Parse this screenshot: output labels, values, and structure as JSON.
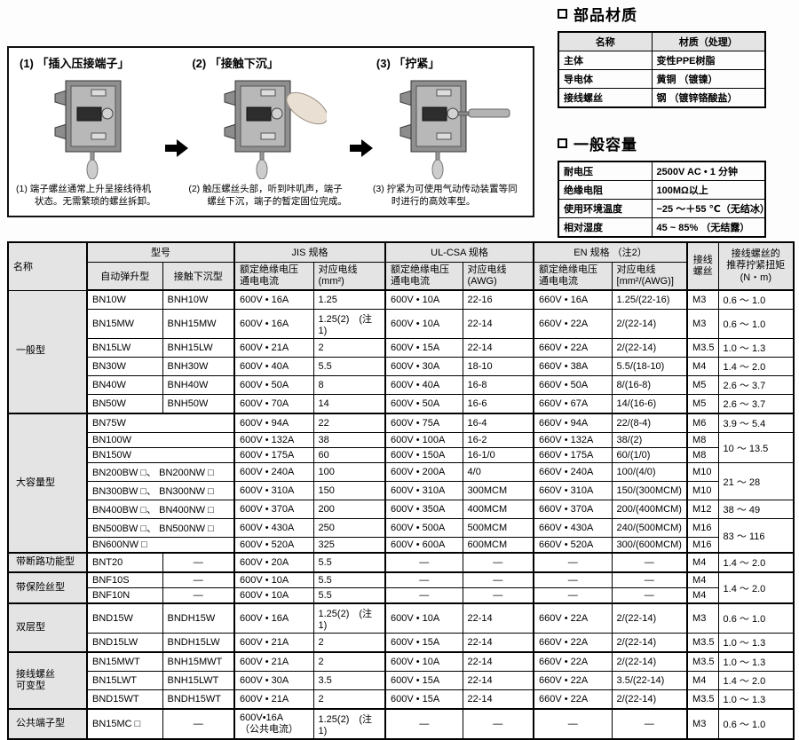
{
  "diagram": {
    "steps": [
      {
        "title": "(1) 「插入压接端子」",
        "caption": "(1) 端子螺丝通常上升呈接线待机\n状态。无需繁琐的螺丝拆卸。"
      },
      {
        "title": "(2) 「接触下沉」",
        "caption": "(2) 触压螺丝头部，听到咔叽声，端子\n螺丝下沉，端子的暂定固位完成。"
      },
      {
        "title": "(3) 「拧紧」",
        "caption": "(3) 拧紧为可使用气动传动装置等同\n时进行的高效率型。"
      }
    ]
  },
  "materials": {
    "title": "部品材质",
    "headers": [
      "名称",
      "材质（处理）"
    ],
    "rows": [
      [
        "主体",
        "变性PPE树脂"
      ],
      [
        "导电体",
        "黄铜 （镀镍）"
      ],
      [
        "接线螺丝",
        "钢 （镀锌铬酸盐）"
      ]
    ]
  },
  "capacity": {
    "title": "一般容量",
    "rows": [
      [
        "耐电压",
        "2500V AC • 1 分钟"
      ],
      [
        "绝缘电阻",
        "100MΩ以上"
      ],
      [
        "使用环境温度",
        "−25 ～＋55 ℃（无结冰）"
      ],
      [
        "相对湿度",
        "45 ~ 85% （无结露）"
      ]
    ]
  },
  "spec": {
    "header": {
      "name": "名称",
      "groups": [
        {
          "label": "型号",
          "cols": [
            "自动弹升型",
            "接触下沉型"
          ]
        },
        {
          "label": "JIS 规格",
          "cols": [
            "额定绝缘电压\n通电电流",
            "对应电线\n(mm²)"
          ]
        },
        {
          "label": "UL-CSA 规格",
          "cols": [
            "额定绝缘电压\n通电电流",
            "对应电线\n(AWG)"
          ]
        },
        {
          "label": "EN 规格 （注2）",
          "cols": [
            "额定绝缘电压\n通电电流",
            "对应电线\n[mm²/(AWG)]"
          ]
        }
      ],
      "screw": "接线\n螺丝",
      "torque": "接线螺丝的\n推荐拧紧扭矩\n(N・m)"
    },
    "groups": [
      {
        "label": "一般型",
        "rows": [
          {
            "c": [
              "BN10W",
              "BNH10W",
              "600V • 16A",
              "1.25",
              "600V • 10A",
              "22-16",
              "660V • 16A",
              "1.25/(22-16)",
              "M3",
              "0.6 ～ 1.0"
            ]
          },
          {
            "c": [
              "BN15MW",
              "BNH15MW",
              "600V • 16A",
              "1.25(2)　(注1)",
              "600V • 10A",
              "22-14",
              "660V • 22A",
              "2/(22-14)",
              "M3",
              "0.6 ～ 1.0"
            ]
          },
          {
            "c": [
              "BN15LW",
              "BNH15LW",
              "600V • 21A",
              "2",
              "600V • 15A",
              "22-14",
              "660V • 22A",
              "2/(22-14)",
              "M3.5",
              "1.0 ～ 1.3"
            ]
          },
          {
            "c": [
              "BN30W",
              "BNH30W",
              "600V • 40A",
              "5.5",
              "600V • 30A",
              "18-10",
              "660V • 38A",
              "5.5/(18-10)",
              "M4",
              "1.4 ～ 2.0"
            ]
          },
          {
            "c": [
              "BN40W",
              "BNH40W",
              "600V • 50A",
              "8",
              "600V • 40A",
              "16-8",
              "660V • 50A",
              "8/(16-8)",
              "M5",
              "2.6 ～ 3.7"
            ]
          },
          {
            "c": [
              "BN50W",
              "BNH50W",
              "600V • 70A",
              "14",
              "600V • 50A",
              "16-6",
              "660V • 67A",
              "14/(16-6)",
              "M5",
              "2.6 ～ 3.7"
            ]
          }
        ]
      },
      {
        "label": "大容量型",
        "rows": [
          {
            "mspan": 2,
            "c": [
              "BN75W",
              null,
              "600V • 94A",
              "22",
              "600V • 75A",
              "16-4",
              "660V • 94A",
              "22/(8-4)",
              "M6",
              "3.9 ～ 5.4"
            ]
          },
          {
            "mspan": 2,
            "tspan": 2,
            "c": [
              "BN100W",
              null,
              "600V • 132A",
              "38",
              "600V • 100A",
              "16-2",
              "660V • 132A",
              "38/(2)",
              "M8",
              "10 ～ 13.5"
            ]
          },
          {
            "mspan": 2,
            "tskip": true,
            "c": [
              "BN150W",
              null,
              "600V • 175A",
              "60",
              "600V • 150A",
              "16-1/0",
              "660V • 175A",
              "60/(1/0)",
              "M8",
              null
            ]
          },
          {
            "mspan": 2,
            "tspan": 2,
            "c": [
              "BN200BW □、 BN200NW □",
              null,
              "600V • 240A",
              "100",
              "600V • 200A",
              "4/0",
              "660V • 240A",
              "100/(4/0)",
              "M10",
              "21 ～ 28"
            ]
          },
          {
            "mspan": 2,
            "tskip": true,
            "c": [
              "BN300BW □、 BN300NW □",
              null,
              "600V • 310A",
              "150",
              "600V • 310A",
              "300MCM",
              "660V • 310A",
              "150/(300MCM)",
              "M10",
              null
            ]
          },
          {
            "mspan": 2,
            "c": [
              "BN400BW □、 BN400NW □",
              null,
              "600V • 370A",
              "200",
              "600V • 350A",
              "400MCM",
              "660V • 370A",
              "200/(400MCM)",
              "M12",
              "38 ～ 49"
            ]
          },
          {
            "mspan": 2,
            "tspan": 2,
            "c": [
              "BN500BW □、 BN500NW □",
              null,
              "600V • 430A",
              "250",
              "600V • 500A",
              "500MCM",
              "660V • 430A",
              "240/(500MCM)",
              "M16",
              "83 ～ 116"
            ]
          },
          {
            "mspan": 2,
            "tskip": true,
            "c": [
              "BN600NW □",
              null,
              "600V • 520A",
              "325",
              "600V • 600A",
              "600MCM",
              "660V • 520A",
              "300/(600MCM)",
              "M16",
              null
            ]
          }
        ]
      },
      {
        "label": "带断路功能型",
        "rows": [
          {
            "c": [
              "BNT20",
              "—",
              "600V • 20A",
              "5.5",
              "—",
              "—",
              "—",
              "—",
              "M4",
              "1.4 ～ 2.0"
            ]
          }
        ]
      },
      {
        "label": "带保险丝型",
        "rows": [
          {
            "tspan": 2,
            "c": [
              "BNF10S",
              "—",
              "600V • 10A",
              "5.5",
              "—",
              "—",
              "—",
              "—",
              "M4",
              "1.4 ～ 2.0"
            ]
          },
          {
            "tskip": true,
            "c": [
              "BNF10N",
              "—",
              "600V • 10A",
              "5.5",
              "—",
              "—",
              "—",
              "—",
              "M4",
              null
            ]
          }
        ]
      },
      {
        "label": "双层型",
        "rows": [
          {
            "c": [
              "BND15W",
              "BNDH15W",
              "600V • 16A",
              "1.25(2)　(注1)",
              "600V • 10A",
              "22-14",
              "660V • 22A",
              "2/(22-14)",
              "M3",
              "0.6 ～ 1.0"
            ]
          },
          {
            "c": [
              "BND15LW",
              "BNDH15LW",
              "600V • 21A",
              "2",
              "600V • 15A",
              "22-14",
              "660V • 22A",
              "2/(22-14)",
              "M3.5",
              "1.0 ～ 1.3"
            ]
          }
        ]
      },
      {
        "label": "接线螺丝\n可变型",
        "rows": [
          {
            "c": [
              "BN15MWT",
              "BNH15MWT",
              "600V • 21A",
              "2",
              "600V • 10A",
              "22-14",
              "660V • 22A",
              "2/(22-14)",
              "M3.5",
              "1.0 ～ 1.3"
            ]
          },
          {
            "c": [
              "BN15LWT",
              "BNH15LWT",
              "600V • 30A",
              "3.5",
              "600V • 15A",
              "22-14",
              "660V • 22A",
              "3.5/(22-14)",
              "M4",
              "1.4 ～ 2.0"
            ]
          },
          {
            "c": [
              "BND15WT",
              "BNDH15WT",
              "600V • 21A",
              "2",
              "600V • 15A",
              "22-14",
              "660V • 22A",
              "2/(22-14)",
              "M3.5",
              "1.0 ～ 1.3"
            ]
          }
        ]
      },
      {
        "label": "公共端子型",
        "rows": [
          {
            "c": [
              "BN15MC □",
              "—",
              "600V•16A\n（公共电流）",
              "1.25(2)　(注1)",
              "—",
              "—",
              "—",
              "—",
              "M3",
              "0.6 ～ 1.0"
            ]
          }
        ]
      }
    ]
  }
}
